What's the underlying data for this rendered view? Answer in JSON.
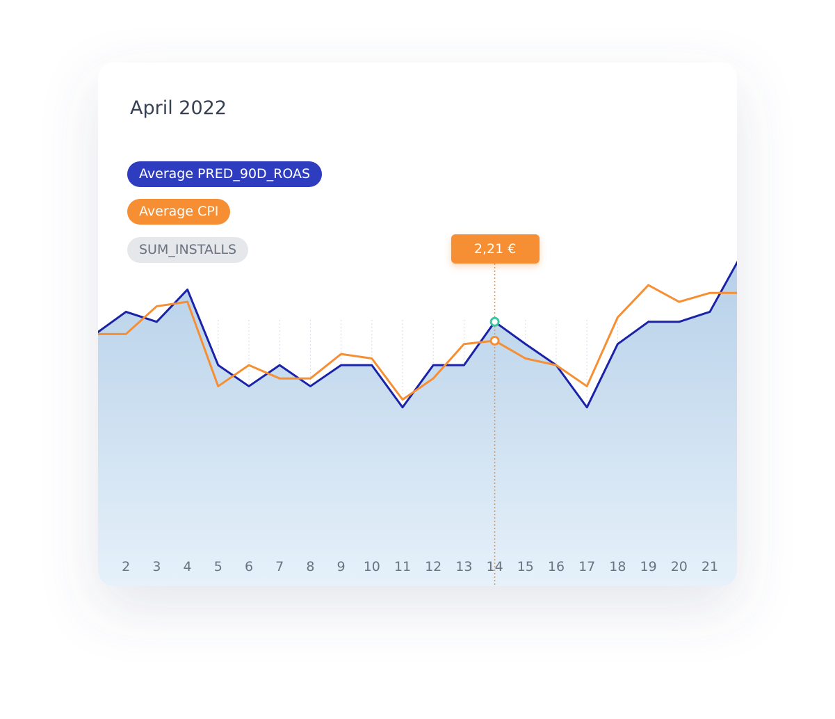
{
  "chart_data": {
    "type": "line",
    "title": "April 2022",
    "categories": [
      null,
      "2",
      "3",
      "4",
      "5",
      "6",
      "7",
      "8",
      "9",
      "10",
      "11",
      "12",
      "13",
      "14",
      "15",
      "16",
      "17",
      "18",
      "19",
      "20",
      "21",
      null
    ],
    "series": [
      {
        "name": "Average PRED_90D_ROAS",
        "color": "#1a23a8",
        "area": true,
        "values": [
          2.27,
          2.47,
          2.38,
          2.67,
          1.99,
          1.8,
          1.99,
          1.8,
          1.99,
          1.99,
          1.61,
          1.99,
          1.99,
          2.38,
          2.18,
          1.99,
          1.61,
          2.18,
          2.38,
          2.38,
          2.47,
          2.97
        ]
      },
      {
        "name": "Average CPI",
        "color": "#f68e33",
        "values": [
          2.27,
          2.27,
          2.52,
          2.56,
          1.8,
          1.99,
          1.87,
          1.87,
          2.09,
          2.05,
          1.68,
          1.87,
          2.18,
          2.21,
          2.05,
          1.99,
          1.8,
          2.42,
          2.71,
          2.56,
          2.64,
          2.64
        ],
        "value_labels": [
          null,
          null,
          null,
          null,
          null,
          null,
          null,
          null,
          null,
          null,
          null,
          null,
          null,
          "2,21 €",
          null,
          null,
          null,
          null,
          null,
          null,
          null,
          null
        ]
      }
    ],
    "inactive_series": [
      "SUM_INSTALLS"
    ],
    "highlight_index": 13,
    "ylim": [
      0,
      4
    ],
    "grid": true
  }
}
